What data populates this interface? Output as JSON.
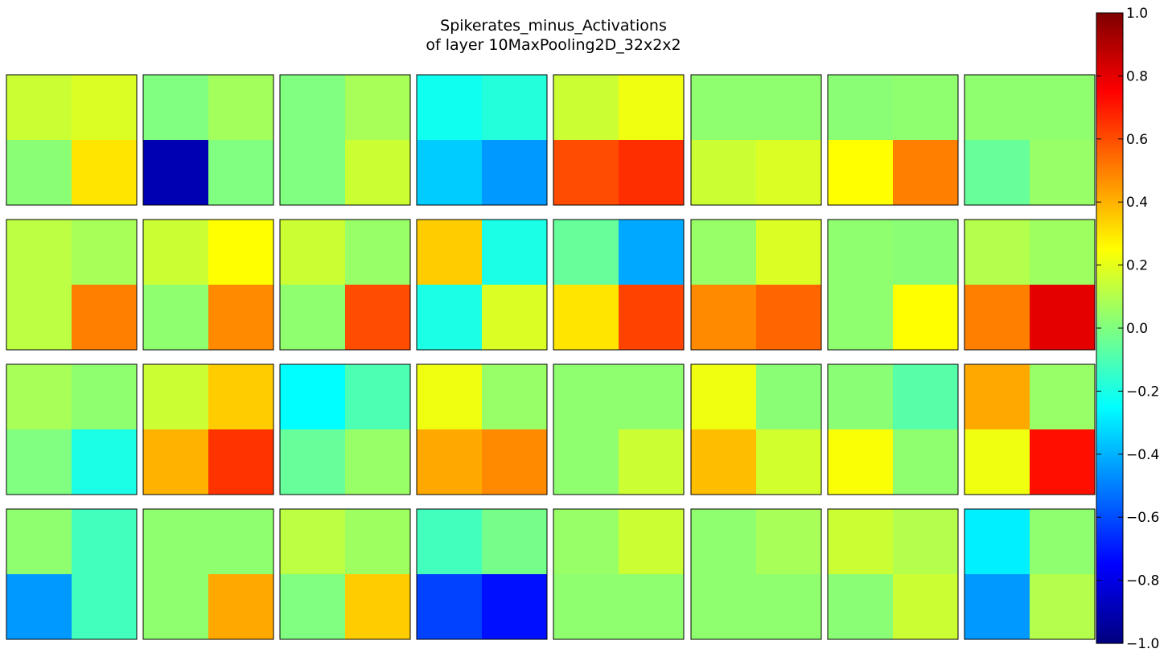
{
  "chart_data": {
    "type": "heatmap",
    "title": "Spikerates_minus_Activations",
    "subtitle": "of layer 10MaxPooling2D_32x2x2",
    "grid_rows": 4,
    "grid_cols": 8,
    "cell_shape": [
      2,
      2
    ],
    "colormap": "jet",
    "vmin": -1.0,
    "vmax": 1.0,
    "colorbar_ticks": [
      "1.0",
      "0.8",
      "0.6",
      "0.4",
      "0.2",
      "0.0",
      "−0.2",
      "−0.4",
      "−0.6",
      "−0.8",
      "−1.0"
    ],
    "colorbar_tick_values": [
      1.0,
      0.8,
      0.6,
      0.4,
      0.2,
      0.0,
      -0.2,
      -0.4,
      -0.6,
      -0.8,
      -1.0
    ],
    "panels": [
      [
        [
          0.15,
          0.18
        ],
        [
          0.02,
          0.3
        ]
      ],
      [
        [
          0.0,
          0.07
        ],
        [
          -0.9,
          0.0
        ]
      ],
      [
        [
          0.0,
          0.08
        ],
        [
          0.0,
          0.15
        ]
      ],
      [
        [
          -0.22,
          -0.18
        ],
        [
          -0.35,
          -0.45
        ]
      ],
      [
        [
          0.15,
          0.22
        ],
        [
          0.6,
          0.66
        ]
      ],
      [
        [
          0.03,
          0.03
        ],
        [
          0.15,
          0.18
        ]
      ],
      [
        [
          0.02,
          0.03
        ],
        [
          0.25,
          0.5
        ]
      ],
      [
        [
          0.03,
          0.03
        ],
        [
          -0.05,
          0.05
        ]
      ],
      [
        [
          0.12,
          0.08
        ],
        [
          0.12,
          0.5
        ]
      ],
      [
        [
          0.15,
          0.25
        ],
        [
          0.03,
          0.48
        ]
      ],
      [
        [
          0.15,
          0.05
        ],
        [
          0.03,
          0.6
        ]
      ],
      [
        [
          0.35,
          -0.2
        ],
        [
          -0.2,
          0.18
        ]
      ],
      [
        [
          -0.05,
          -0.42
        ],
        [
          0.3,
          0.62
        ]
      ],
      [
        [
          0.05,
          0.18
        ],
        [
          0.48,
          0.55
        ]
      ],
      [
        [
          0.03,
          0.02
        ],
        [
          0.03,
          0.25
        ]
      ],
      [
        [
          0.1,
          0.06
        ],
        [
          0.5,
          0.8
        ]
      ],
      [
        [
          0.08,
          0.03
        ],
        [
          0.0,
          -0.2
        ]
      ],
      [
        [
          0.15,
          0.35
        ],
        [
          0.4,
          0.65
        ]
      ],
      [
        [
          -0.25,
          -0.1
        ],
        [
          -0.05,
          0.05
        ]
      ],
      [
        [
          0.22,
          0.05
        ],
        [
          0.42,
          0.48
        ]
      ],
      [
        [
          0.03,
          0.03
        ],
        [
          0.03,
          0.15
        ]
      ],
      [
        [
          0.22,
          0.02
        ],
        [
          0.38,
          0.16
        ]
      ],
      [
        [
          0.02,
          -0.08
        ],
        [
          0.24,
          0.03
        ]
      ],
      [
        [
          0.42,
          0.05
        ],
        [
          0.22,
          0.72
        ]
      ],
      [
        [
          0.03,
          -0.12
        ],
        [
          -0.45,
          -0.12
        ]
      ],
      [
        [
          0.03,
          0.03
        ],
        [
          0.03,
          0.42
        ]
      ],
      [
        [
          0.12,
          0.06
        ],
        [
          0.0,
          0.35
        ]
      ],
      [
        [
          -0.12,
          -0.02
        ],
        [
          -0.62,
          -0.72
        ]
      ],
      [
        [
          0.05,
          0.15
        ],
        [
          0.03,
          0.03
        ]
      ],
      [
        [
          0.03,
          0.08
        ],
        [
          0.03,
          0.03
        ]
      ],
      [
        [
          0.15,
          0.1
        ],
        [
          0.02,
          0.15
        ]
      ],
      [
        [
          -0.28,
          0.03
        ],
        [
          -0.45,
          0.1
        ]
      ]
    ]
  }
}
